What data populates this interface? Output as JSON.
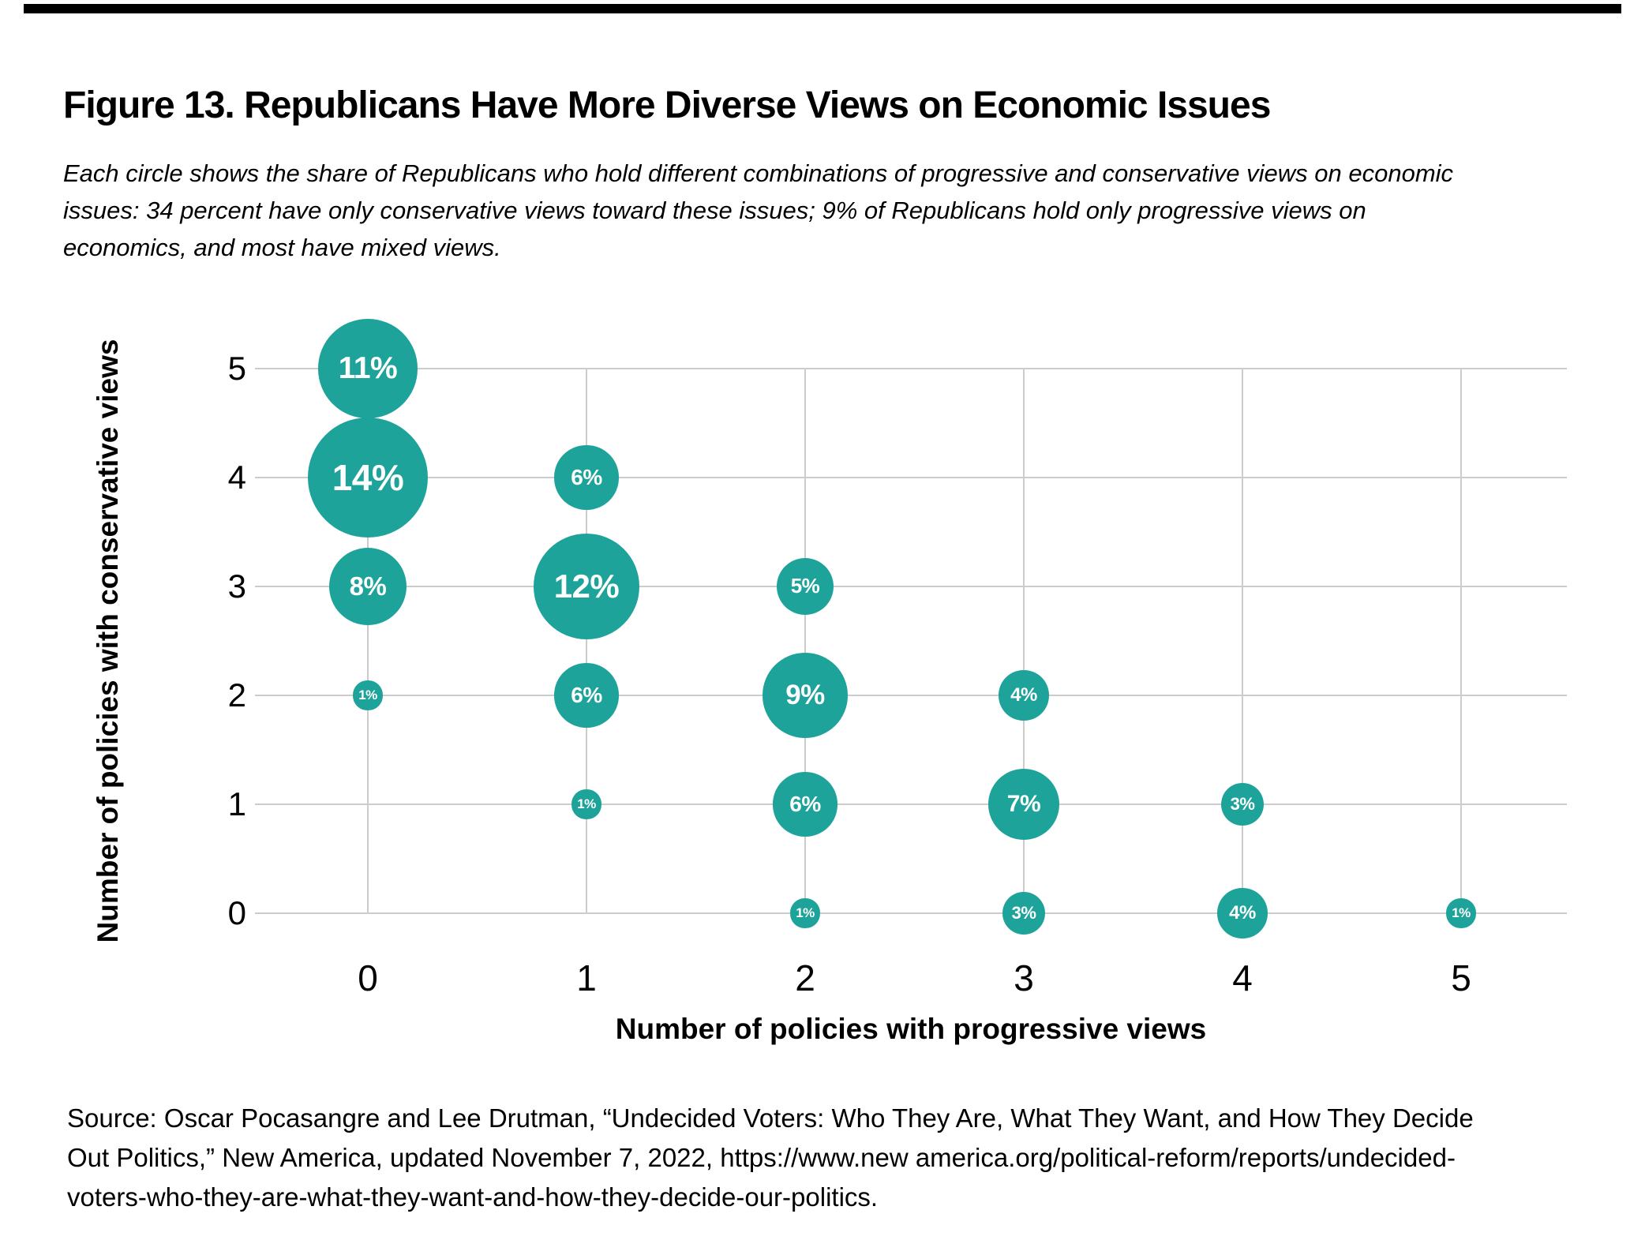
{
  "figure": {
    "title": "Figure 13. Republicans Have More Diverse Views on Economic Issues",
    "subtitle_lines": [
      "Each circle shows the share of Republicans who hold different combinations of progressive and conservative views on economic",
      "issues: 34 percent have only conservative views toward these issues; 9% of Republicans hold only progressive views on",
      "economics, and most have mixed views."
    ],
    "source_lines": [
      "Source: Oscar Pocasangre and Lee Drutman, “Undecided Voters: Who They Are, What They Want, and How They Decide",
      "Out Politics,” New America, updated November 7, 2022, https://www.new america.org/political-reform/reports/undecided-",
      "voters-who-they-are-what-they-want-and-how-they-decide-our-politics."
    ]
  },
  "chart_data": {
    "type": "scatter",
    "subtype": "bubble",
    "xlabel": "Number of policies with progressive views",
    "ylabel": "Number of policies with conservative views",
    "x_ticks": [
      0,
      1,
      2,
      3,
      4,
      5
    ],
    "y_ticks": [
      0,
      1,
      2,
      3,
      4,
      5
    ],
    "xlim": [
      0,
      5
    ],
    "ylim": [
      0,
      5
    ],
    "grid": "on",
    "legend": "none",
    "bubble_color": "#1EA39B",
    "bubble_label_color": "#ffffff",
    "grid_color": "#cccccc",
    "points": [
      {
        "x": 0,
        "y": 5,
        "value": 11,
        "label": "11%"
      },
      {
        "x": 0,
        "y": 4,
        "value": 14,
        "label": "14%"
      },
      {
        "x": 0,
        "y": 3,
        "value": 8,
        "label": "8%"
      },
      {
        "x": 0,
        "y": 2,
        "value": 1,
        "label": "1%"
      },
      {
        "x": 1,
        "y": 4,
        "value": 6,
        "label": "6%"
      },
      {
        "x": 1,
        "y": 3,
        "value": 12,
        "label": "12%"
      },
      {
        "x": 1,
        "y": 2,
        "value": 6,
        "label": "6%"
      },
      {
        "x": 1,
        "y": 1,
        "value": 1,
        "label": "1%"
      },
      {
        "x": 2,
        "y": 3,
        "value": 5,
        "label": "5%"
      },
      {
        "x": 2,
        "y": 2,
        "value": 9,
        "label": "9%"
      },
      {
        "x": 2,
        "y": 1,
        "value": 6,
        "label": "6%"
      },
      {
        "x": 2,
        "y": 0,
        "value": 1,
        "label": "1%"
      },
      {
        "x": 3,
        "y": 2,
        "value": 4,
        "label": "4%"
      },
      {
        "x": 3,
        "y": 1,
        "value": 7,
        "label": "7%"
      },
      {
        "x": 3,
        "y": 0,
        "value": 3,
        "label": "3%"
      },
      {
        "x": 4,
        "y": 1,
        "value": 3,
        "label": "3%"
      },
      {
        "x": 4,
        "y": 0,
        "value": 4,
        "label": "4%"
      },
      {
        "x": 5,
        "y": 0,
        "value": 1,
        "label": "1%"
      }
    ]
  }
}
